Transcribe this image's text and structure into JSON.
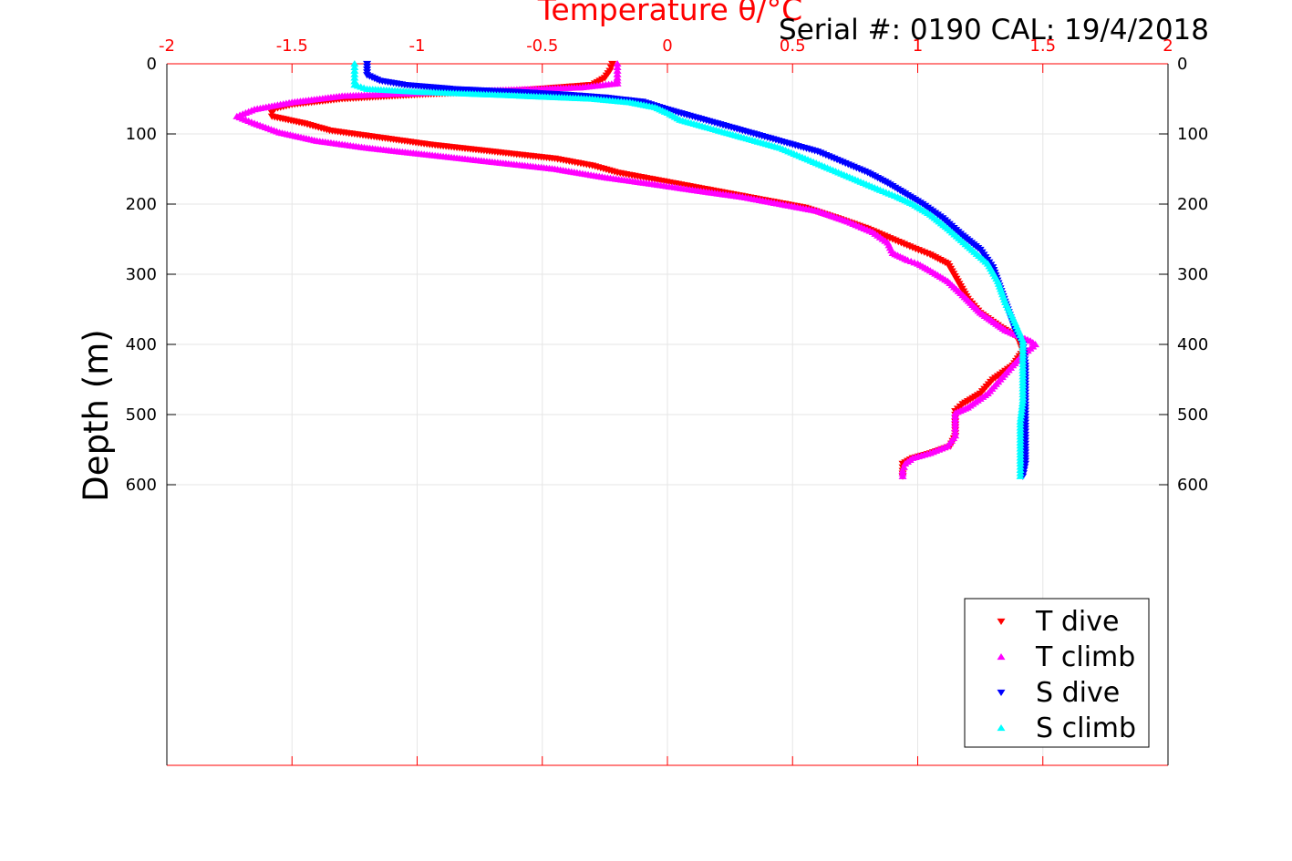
{
  "chart_data": {
    "type": "scatter",
    "title": "Temperature θ/°C",
    "annotation": "Serial #: 0190  CAL: 19/4/2018",
    "xlabel": "Temperature θ/°C",
    "ylabel": "Depth (m)",
    "xlim": [
      -2,
      2
    ],
    "ylim": [
      0,
      1000
    ],
    "y_reversed": true,
    "x_axis_position": "top",
    "x_ticks": [
      "-2",
      "-1.5",
      "-1",
      "-0.5",
      "0",
      "0.5",
      "1",
      "1.5",
      "2"
    ],
    "y_ticks": [
      "0",
      "100",
      "200",
      "300",
      "400",
      "500",
      "600"
    ],
    "grid": true,
    "legend_position": "bottom-right",
    "colors": {
      "x_axis": "#ff0000",
      "grid": "#e6e6e6"
    },
    "series": [
      {
        "name": "T dive",
        "marker": "triangle-down",
        "color": "#ff0000",
        "points": [
          [
            -0.22,
            0
          ],
          [
            -0.23,
            10
          ],
          [
            -0.25,
            20
          ],
          [
            -0.3,
            30
          ],
          [
            -0.6,
            38
          ],
          [
            -1.0,
            44
          ],
          [
            -1.3,
            50
          ],
          [
            -1.5,
            58
          ],
          [
            -1.58,
            65
          ],
          [
            -1.58,
            75
          ],
          [
            -1.45,
            85
          ],
          [
            -1.35,
            95
          ],
          [
            -1.15,
            105
          ],
          [
            -0.95,
            115
          ],
          [
            -0.7,
            125
          ],
          [
            -0.45,
            135
          ],
          [
            -0.3,
            145
          ],
          [
            -0.2,
            155
          ],
          [
            -0.05,
            165
          ],
          [
            0.1,
            175
          ],
          [
            0.25,
            185
          ],
          [
            0.4,
            195
          ],
          [
            0.55,
            205
          ],
          [
            0.68,
            220
          ],
          [
            0.8,
            235
          ],
          [
            0.9,
            250
          ],
          [
            0.98,
            262
          ],
          [
            1.05,
            272
          ],
          [
            1.12,
            285
          ],
          [
            1.16,
            310
          ],
          [
            1.2,
            335
          ],
          [
            1.25,
            355
          ],
          [
            1.33,
            375
          ],
          [
            1.4,
            390
          ],
          [
            1.42,
            410
          ],
          [
            1.38,
            430
          ],
          [
            1.3,
            450
          ],
          [
            1.25,
            470
          ],
          [
            1.18,
            485
          ],
          [
            1.15,
            495
          ],
          [
            1.15,
            510
          ],
          [
            1.15,
            530
          ],
          [
            1.13,
            545
          ],
          [
            1.05,
            555
          ],
          [
            0.98,
            562
          ],
          [
            0.94,
            570
          ],
          [
            0.94,
            580
          ],
          [
            0.94,
            588
          ]
        ]
      },
      {
        "name": "T climb",
        "marker": "triangle-up",
        "color": "#ff00ff",
        "points": [
          [
            -0.2,
            0
          ],
          [
            -0.2,
            10
          ],
          [
            -0.2,
            20
          ],
          [
            -0.2,
            28
          ],
          [
            -0.35,
            34
          ],
          [
            -0.7,
            38
          ],
          [
            -1.0,
            42
          ],
          [
            -1.3,
            46
          ],
          [
            -1.5,
            55
          ],
          [
            -1.65,
            65
          ],
          [
            -1.72,
            75
          ],
          [
            -1.65,
            85
          ],
          [
            -1.55,
            98
          ],
          [
            -1.4,
            110
          ],
          [
            -1.2,
            120
          ],
          [
            -0.95,
            130
          ],
          [
            -0.7,
            140
          ],
          [
            -0.45,
            150
          ],
          [
            -0.25,
            162
          ],
          [
            -0.05,
            172
          ],
          [
            0.1,
            180
          ],
          [
            0.3,
            190
          ],
          [
            0.45,
            200
          ],
          [
            0.6,
            210
          ],
          [
            0.72,
            225
          ],
          [
            0.82,
            240
          ],
          [
            0.88,
            255
          ],
          [
            0.9,
            270
          ],
          [
            0.96,
            280
          ],
          [
            1.0,
            285
          ],
          [
            1.05,
            295
          ],
          [
            1.12,
            310
          ],
          [
            1.18,
            330
          ],
          [
            1.25,
            355
          ],
          [
            1.35,
            380
          ],
          [
            1.45,
            395
          ],
          [
            1.47,
            400
          ],
          [
            1.42,
            415
          ],
          [
            1.38,
            430
          ],
          [
            1.33,
            450
          ],
          [
            1.28,
            470
          ],
          [
            1.2,
            490
          ],
          [
            1.15,
            498
          ],
          [
            1.15,
            515
          ],
          [
            1.15,
            530
          ],
          [
            1.12,
            545
          ],
          [
            1.05,
            555
          ],
          [
            0.98,
            562
          ],
          [
            0.95,
            570
          ],
          [
            0.94,
            580
          ],
          [
            0.94,
            588
          ]
        ]
      },
      {
        "name": "S dive",
        "marker": "triangle-down",
        "color": "#0000ff",
        "points": [
          [
            -1.2,
            0
          ],
          [
            -1.2,
            8
          ],
          [
            -1.2,
            16
          ],
          [
            -1.15,
            24
          ],
          [
            -1.05,
            30
          ],
          [
            -0.85,
            36
          ],
          [
            -0.6,
            40
          ],
          [
            -0.4,
            44
          ],
          [
            -0.25,
            48
          ],
          [
            -0.1,
            54
          ],
          [
            0.0,
            65
          ],
          [
            0.1,
            75
          ],
          [
            0.2,
            85
          ],
          [
            0.3,
            95
          ],
          [
            0.4,
            105
          ],
          [
            0.5,
            115
          ],
          [
            0.6,
            125
          ],
          [
            0.7,
            140
          ],
          [
            0.8,
            155
          ],
          [
            0.88,
            170
          ],
          [
            0.95,
            185
          ],
          [
            1.02,
            200
          ],
          [
            1.1,
            220
          ],
          [
            1.18,
            245
          ],
          [
            1.25,
            265
          ],
          [
            1.3,
            290
          ],
          [
            1.33,
            320
          ],
          [
            1.36,
            350
          ],
          [
            1.39,
            380
          ],
          [
            1.42,
            400
          ],
          [
            1.43,
            430
          ],
          [
            1.43,
            460
          ],
          [
            1.43,
            490
          ],
          [
            1.43,
            520
          ],
          [
            1.43,
            550
          ],
          [
            1.43,
            570
          ],
          [
            1.42,
            588
          ]
        ]
      },
      {
        "name": "S climb",
        "marker": "triangle-up",
        "color": "#00ffff",
        "points": [
          [
            -1.25,
            0
          ],
          [
            -1.25,
            10
          ],
          [
            -1.25,
            20
          ],
          [
            -1.25,
            30
          ],
          [
            -1.2,
            36
          ],
          [
            -1.0,
            40
          ],
          [
            -0.7,
            44
          ],
          [
            -0.5,
            47
          ],
          [
            -0.3,
            50
          ],
          [
            -0.15,
            55
          ],
          [
            -0.05,
            62
          ],
          [
            0.0,
            70
          ],
          [
            0.05,
            80
          ],
          [
            0.15,
            90
          ],
          [
            0.25,
            100
          ],
          [
            0.35,
            110
          ],
          [
            0.45,
            120
          ],
          [
            0.55,
            135
          ],
          [
            0.65,
            150
          ],
          [
            0.75,
            165
          ],
          [
            0.85,
            180
          ],
          [
            0.92,
            190
          ],
          [
            0.98,
            200
          ],
          [
            1.05,
            215
          ],
          [
            1.12,
            235
          ],
          [
            1.2,
            260
          ],
          [
            1.28,
            285
          ],
          [
            1.32,
            310
          ],
          [
            1.35,
            340
          ],
          [
            1.39,
            370
          ],
          [
            1.42,
            395
          ],
          [
            1.42,
            420
          ],
          [
            1.42,
            450
          ],
          [
            1.42,
            480
          ],
          [
            1.41,
            510
          ],
          [
            1.41,
            540
          ],
          [
            1.41,
            570
          ],
          [
            1.41,
            588
          ]
        ]
      }
    ]
  }
}
